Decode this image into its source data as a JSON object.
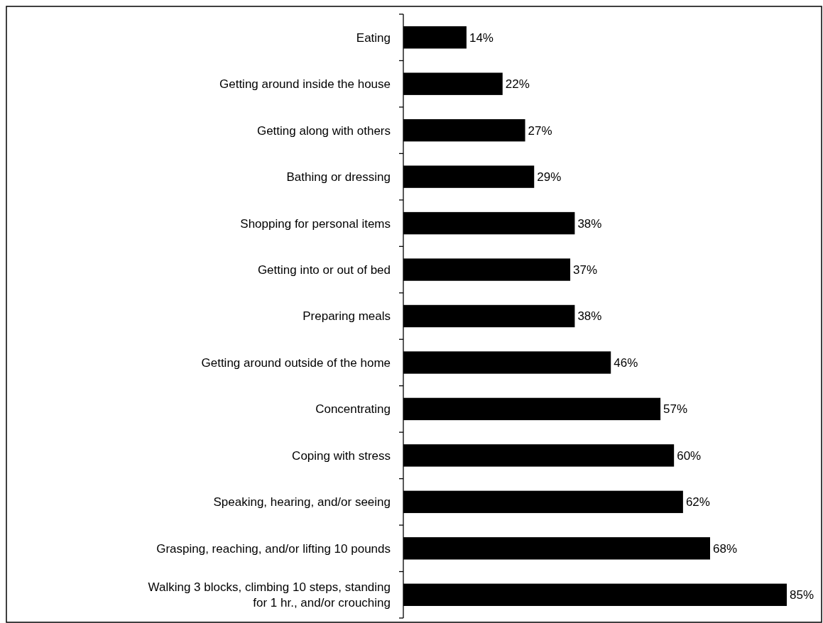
{
  "chart_data": {
    "type": "bar",
    "orientation": "horizontal",
    "color": "#000000",
    "value_labels": [
      "14%",
      "22%",
      "27%",
      "29%",
      "38%",
      "37%",
      "38%",
      "46%",
      "57%",
      "60%",
      "62%",
      "68%",
      "85%"
    ],
    "categories": [
      "Eating",
      "Getting around inside the house",
      "Getting along with others",
      "Bathing or dressing",
      "Shopping for personal items",
      "Getting into or out of bed",
      "Preparing meals",
      "Getting around outside of the home",
      "Concentrating",
      "Coping with stress",
      "Speaking, hearing, and/or seeing",
      "Grasping, reaching, and/or lifting 10 pounds",
      "Walking 3 blocks, climbing 10 steps, standing for 1 hr., and/or crouching"
    ],
    "values": [
      14,
      22,
      27,
      29,
      38,
      37,
      38,
      46,
      57,
      60,
      62,
      68,
      85
    ]
  }
}
